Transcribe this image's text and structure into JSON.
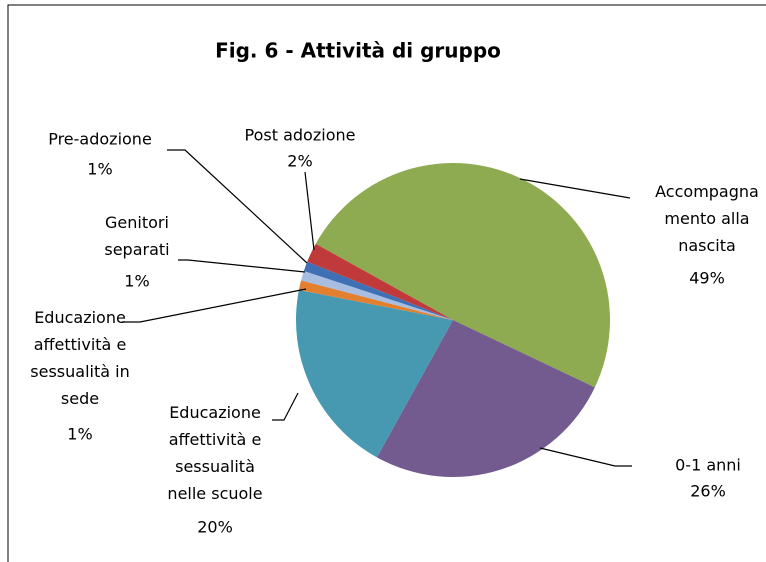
{
  "chart_data": {
    "type": "pie",
    "title": "Fig. 6 - Attività di gruppo",
    "categories": [
      "Accompagna\nmento alla\nnascita",
      "0-1 anni",
      "Educazione\naffettività e\nsessualità\nnelle scuole",
      "Educazione\naffettività e\nsessualità in\nsede",
      "Genitori\nseparati",
      "Pre-adozione",
      "Post adozione"
    ],
    "values": [
      49,
      26,
      20,
      1,
      1,
      1,
      2
    ],
    "value_labels": [
      "49%",
      "26%",
      "20%",
      "1%",
      "1%",
      "1%",
      "2%"
    ],
    "colors": [
      "#8eab51",
      "#735b90",
      "#4699b1",
      "#e2802f",
      "#a7bde1",
      "#3f70b6",
      "#c0393b"
    ]
  }
}
